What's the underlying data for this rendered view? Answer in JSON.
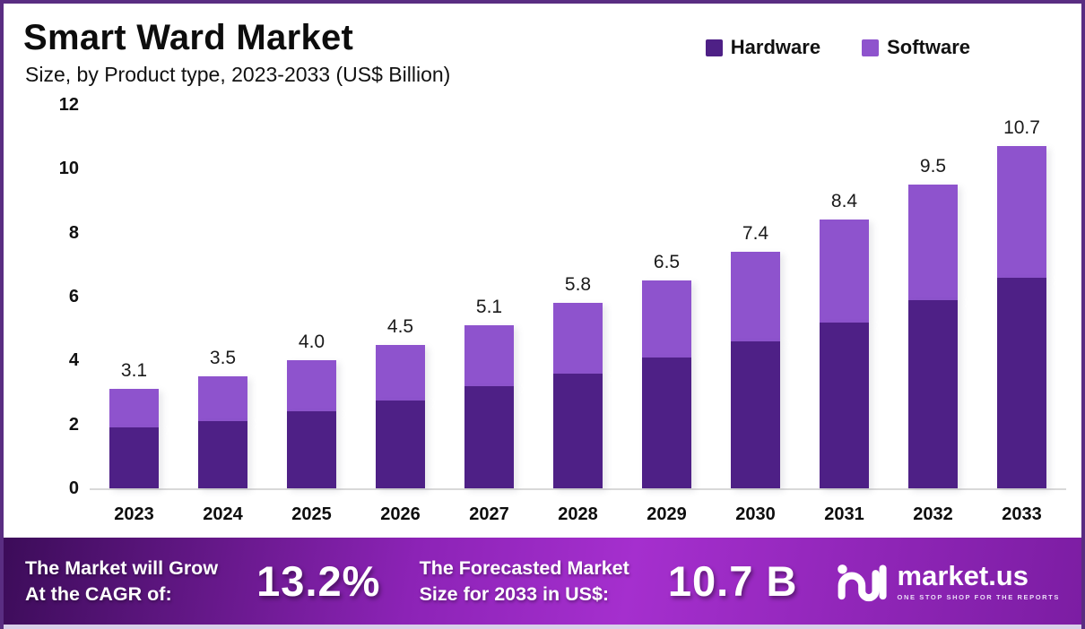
{
  "header": {
    "title": "Smart Ward Market",
    "subtitle": "Size, by Product type, 2023-2033 (US$ Billion)"
  },
  "legend": [
    {
      "label": "Hardware",
      "color": "#4e2086"
    },
    {
      "label": "Software",
      "color": "#8e53cd"
    }
  ],
  "chart_data": {
    "type": "bar",
    "stacked": true,
    "title": "Smart Ward Market",
    "subtitle": "Size, by Product type, 2023-2033 (US$ Billion)",
    "unit": "US$ Billion",
    "categories": [
      "2023",
      "2024",
      "2025",
      "2026",
      "2027",
      "2028",
      "2029",
      "2030",
      "2031",
      "2032",
      "2033"
    ],
    "series": [
      {
        "name": "Hardware",
        "color": "#4e2086",
        "values": [
          1.9,
          2.1,
          2.4,
          2.75,
          3.2,
          3.6,
          4.1,
          4.6,
          5.2,
          5.9,
          6.6
        ]
      },
      {
        "name": "Software",
        "color": "#8e53cd",
        "values": [
          1.2,
          1.4,
          1.6,
          1.75,
          1.9,
          2.2,
          2.4,
          2.8,
          3.2,
          3.6,
          4.1
        ]
      }
    ],
    "totals": [
      3.1,
      3.5,
      4.0,
      4.5,
      5.1,
      5.8,
      6.5,
      7.4,
      8.4,
      9.5,
      10.7
    ],
    "total_labels": [
      "3.1",
      "3.5",
      "4.0",
      "4.5",
      "5.1",
      "5.8",
      "6.5",
      "7.4",
      "8.4",
      "9.5",
      "10.7"
    ],
    "ylim": [
      0,
      12
    ],
    "yticks": [
      0,
      2,
      4,
      6,
      8,
      10,
      12
    ],
    "grid": false,
    "legend_position": "top-right"
  },
  "footer": {
    "left_line1": "The Market will Grow",
    "left_line2": "At the CAGR of:",
    "cagr_value": "13.2%",
    "mid_line1": "The Forecasted Market",
    "mid_line2": "Size for 2033 in US$:",
    "forecast_value": "10.7 B",
    "logo_text": "market.us",
    "logo_tagline": "ONE STOP SHOP FOR THE REPORTS",
    "gradient": [
      "#3c0c59",
      "#8c23b6",
      "#a52fce",
      "#7c1da3"
    ]
  },
  "colors": {
    "page_border": "#5a2d82",
    "baseline": "#d9d9d9",
    "hardware": "#4e2086",
    "software": "#8e53cd"
  }
}
